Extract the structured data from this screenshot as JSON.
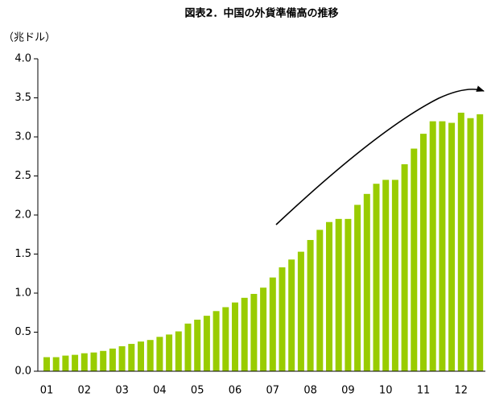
{
  "chart_data": {
    "type": "bar",
    "title": "図表2．中国の外貨準備高の推移",
    "y_label": "（兆ドル）",
    "categories": [
      "01",
      null,
      null,
      null,
      "02",
      null,
      null,
      null,
      "03",
      null,
      null,
      null,
      "04",
      null,
      null,
      null,
      "05",
      null,
      null,
      null,
      "06",
      null,
      null,
      null,
      "07",
      null,
      null,
      null,
      "08",
      null,
      null,
      null,
      "09",
      null,
      null,
      null,
      "10",
      null,
      null,
      null,
      "11",
      null,
      null,
      null,
      "12",
      null,
      null
    ],
    "values": [
      0.18,
      0.18,
      0.2,
      0.21,
      0.23,
      0.24,
      0.26,
      0.29,
      0.32,
      0.35,
      0.38,
      0.4,
      0.44,
      0.47,
      0.51,
      0.61,
      0.66,
      0.71,
      0.77,
      0.82,
      0.88,
      0.94,
      0.99,
      1.07,
      1.2,
      1.33,
      1.43,
      1.53,
      1.68,
      1.81,
      1.91,
      1.95,
      1.95,
      2.13,
      2.27,
      2.4,
      2.45,
      2.45,
      2.65,
      2.85,
      3.04,
      3.2,
      3.2,
      3.18,
      3.31,
      3.24,
      3.29
    ],
    "color": "#99cc00",
    "ylim": [
      0,
      4
    ],
    "yticks": [
      {
        "value": 0,
        "label": "0.0"
      },
      0.5,
      {
        "value": 1,
        "label": "1.0"
      },
      1.5,
      {
        "value": 2,
        "label": "2.0"
      },
      2.5,
      {
        "value": 3,
        "label": "3.0"
      },
      3.5,
      {
        "value": 4,
        "label": "4.0"
      }
    ],
    "grid": false
  }
}
